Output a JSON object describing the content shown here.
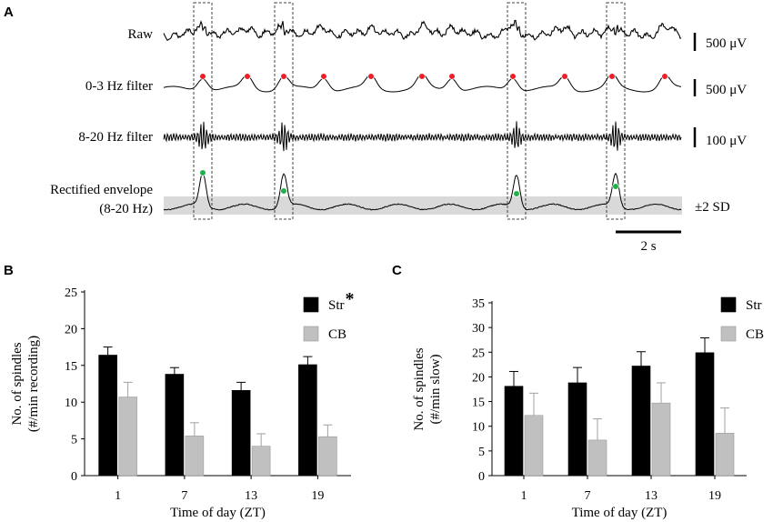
{
  "figure": {
    "panel_a": {
      "letter": "A",
      "traces": [
        {
          "label": "Raw",
          "scale": "500 μV"
        },
        {
          "label": "0-3 Hz filter",
          "scale": "500 μV"
        },
        {
          "label": "8-20 Hz filter",
          "scale": "100 μV"
        },
        {
          "label": "Rectified envelope",
          "label2": "(8-20 Hz)",
          "scale": "±2 SD"
        }
      ],
      "time_scale": "2 s",
      "colors": {
        "slow_peak": "#e8202a",
        "envelope_peak": "#22b04b",
        "band": "#d9d9d9"
      }
    },
    "panel_b": {
      "letter": "B"
    },
    "panel_c": {
      "letter": "C"
    }
  },
  "chart_data": [
    {
      "type": "bar",
      "panel": "B",
      "title": "",
      "xlabel": "Time of day (ZT)",
      "ylabel": [
        "No. of spindles",
        "(#/min recording)"
      ],
      "categories": [
        "1",
        "7",
        "13",
        "19"
      ],
      "ylim": [
        0,
        25
      ],
      "yticks": [
        "0",
        "5",
        "10",
        "15",
        "20",
        "25"
      ],
      "series": [
        {
          "name": "Str",
          "marker": "*",
          "color": "#000000",
          "values": [
            16.4,
            13.8,
            11.6,
            15.1
          ],
          "errors": [
            1.1,
            0.9,
            1.1,
            1.1
          ]
        },
        {
          "name": "CB",
          "color": "#c0c0c0",
          "values": [
            10.7,
            5.4,
            4.0,
            5.3
          ],
          "errors": [
            2.0,
            1.8,
            1.7,
            1.6
          ]
        }
      ]
    },
    {
      "type": "bar",
      "panel": "C",
      "title": "",
      "xlabel": "Time of day (ZT)",
      "ylabel": [
        "No. of spindles",
        "(#/min slow)"
      ],
      "categories": [
        "1",
        "7",
        "13",
        "19"
      ],
      "ylim": [
        0,
        35
      ],
      "yticks": [
        "0",
        "5",
        "10",
        "15",
        "20",
        "25",
        "30",
        "35"
      ],
      "series": [
        {
          "name": "Str",
          "color": "#000000",
          "values": [
            18.1,
            18.8,
            22.2,
            24.9
          ],
          "errors": [
            3.0,
            3.1,
            2.9,
            3.0
          ]
        },
        {
          "name": "CB",
          "color": "#c0c0c0",
          "values": [
            12.2,
            7.2,
            14.7,
            8.6
          ],
          "errors": [
            4.5,
            4.3,
            4.1,
            5.1
          ]
        }
      ]
    }
  ]
}
